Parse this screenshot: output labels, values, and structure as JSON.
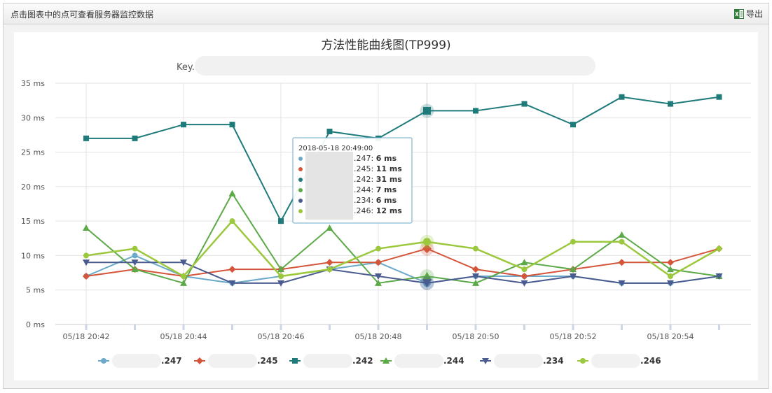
{
  "header": {
    "hint_text": "点击图表中的点可查看服务器监控数据",
    "export_label": "导出"
  },
  "chart_data": {
    "type": "line",
    "title": "方法性能曲线图(TP999)",
    "subtitle": "Key.",
    "ylim": [
      0,
      35
    ],
    "yticks": [
      "0 ms",
      "5 ms",
      "10 ms",
      "15 ms",
      "20 ms",
      "25 ms",
      "30 ms",
      "35 ms"
    ],
    "x": [
      "05/18 20:42",
      "05/18 20:43",
      "05/18 20:44",
      "05/18 20:45",
      "05/18 20:46",
      "05/18 20:47",
      "05/18 20:48",
      "05/18 20:49",
      "05/18 20:50",
      "05/18 20:51",
      "05/18 20:52",
      "05/18 20:53",
      "05/18 20:54",
      "05/18 20:55"
    ],
    "xtick_labels": [
      "05/18 20:42",
      "05/18 20:44",
      "05/18 20:46",
      "05/18 20:48",
      "05/18 20:50",
      "05/18 20:52",
      "05/18 20:54"
    ],
    "grid": true,
    "legend_position": "bottom",
    "series": [
      {
        "name": ".247",
        "color": "#6aa9c9",
        "marker": "circle",
        "values": [
          7,
          10,
          7,
          6,
          7,
          8,
          9,
          6,
          7,
          7,
          7,
          6,
          6,
          7
        ]
      },
      {
        "name": ".245",
        "color": "#d4553a",
        "marker": "diamond",
        "values": [
          7,
          8,
          7,
          8,
          8,
          9,
          9,
          11,
          8,
          7,
          8,
          9,
          9,
          11
        ]
      },
      {
        "name": ".242",
        "color": "#1f7a7a",
        "marker": "square",
        "values": [
          27,
          27,
          29,
          29,
          15,
          28,
          27,
          31,
          31,
          32,
          29,
          33,
          32,
          33
        ]
      },
      {
        "name": ".244",
        "color": "#5caa47",
        "marker": "triangle",
        "values": [
          14,
          8,
          6,
          19,
          8,
          14,
          6,
          7,
          6,
          9,
          8,
          13,
          8,
          7
        ]
      },
      {
        "name": ".234",
        "color": "#4a5b8f",
        "marker": "triangle-down",
        "values": [
          9,
          9,
          9,
          6,
          6,
          8,
          7,
          6,
          7,
          6,
          7,
          6,
          6,
          7
        ]
      },
      {
        "name": ".246",
        "color": "#9bc83c",
        "marker": "circle",
        "values": [
          10,
          11,
          7,
          15,
          7,
          8,
          11,
          12,
          11,
          8,
          12,
          12,
          7,
          11
        ]
      }
    ],
    "tooltip": {
      "title": "2018-05-18 20:49:00",
      "rows": [
        {
          "name": ".247",
          "value": "6 ms"
        },
        {
          "name": ".245",
          "value": "11 ms"
        },
        {
          "name": ".242",
          "value": "31 ms"
        },
        {
          "name": ".244",
          "value": "7 ms"
        },
        {
          "name": ".234",
          "value": "6 ms"
        },
        {
          "name": ".246",
          "value": "12 ms"
        }
      ]
    }
  }
}
